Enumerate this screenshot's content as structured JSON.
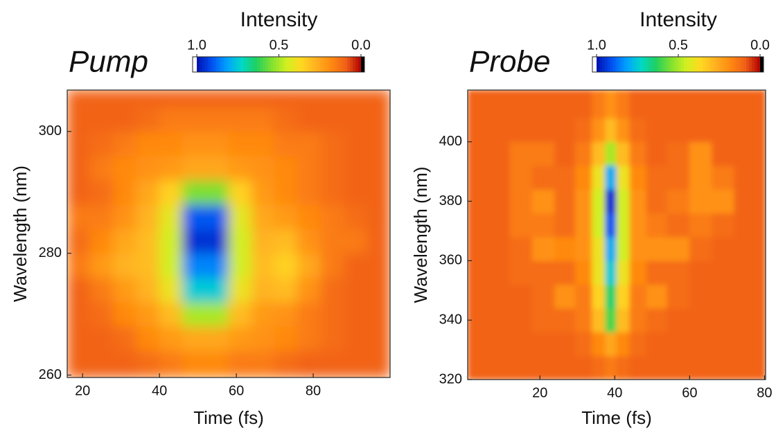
{
  "chart_data": [
    {
      "type": "heatmap",
      "title": "Pump",
      "x_label": "Time (fs)",
      "y_label": "Wavelength (nm)",
      "colorbar_label": "Intensity",
      "x": [
        19,
        25,
        31,
        37,
        43,
        49,
        55,
        61,
        67,
        73,
        79,
        85,
        91,
        97
      ],
      "y": [
        262,
        266,
        270,
        274,
        278,
        282,
        286,
        290,
        294,
        298,
        302,
        306
      ],
      "z": [
        [
          0.1,
          0.1,
          0.1,
          0.12,
          0.15,
          0.18,
          0.18,
          0.15,
          0.15,
          0.12,
          0.1,
          0.1,
          0.1,
          0.1
        ],
        [
          0.1,
          0.1,
          0.12,
          0.18,
          0.22,
          0.25,
          0.25,
          0.22,
          0.2,
          0.18,
          0.15,
          0.12,
          0.1,
          0.1
        ],
        [
          0.1,
          0.12,
          0.18,
          0.22,
          0.3,
          0.5,
          0.5,
          0.3,
          0.22,
          0.2,
          0.15,
          0.12,
          0.1,
          0.1
        ],
        [
          0.1,
          0.15,
          0.22,
          0.28,
          0.4,
          0.75,
          0.75,
          0.4,
          0.28,
          0.3,
          0.2,
          0.12,
          0.1,
          0.1
        ],
        [
          0.15,
          0.22,
          0.28,
          0.3,
          0.45,
          0.85,
          0.85,
          0.45,
          0.3,
          0.35,
          0.25,
          0.15,
          0.1,
          0.1
        ],
        [
          0.12,
          0.18,
          0.25,
          0.3,
          0.45,
          0.95,
          0.95,
          0.45,
          0.28,
          0.3,
          0.2,
          0.15,
          0.15,
          0.1
        ],
        [
          0.15,
          0.15,
          0.2,
          0.28,
          0.42,
          0.9,
          0.9,
          0.42,
          0.25,
          0.22,
          0.18,
          0.15,
          0.12,
          0.1
        ],
        [
          0.1,
          0.12,
          0.18,
          0.25,
          0.35,
          0.55,
          0.55,
          0.35,
          0.22,
          0.18,
          0.15,
          0.12,
          0.1,
          0.1
        ],
        [
          0.1,
          0.15,
          0.18,
          0.2,
          0.22,
          0.25,
          0.25,
          0.22,
          0.2,
          0.18,
          0.15,
          0.12,
          0.1,
          0.1
        ],
        [
          0.1,
          0.12,
          0.15,
          0.18,
          0.18,
          0.2,
          0.2,
          0.18,
          0.18,
          0.15,
          0.15,
          0.12,
          0.1,
          0.1
        ],
        [
          0.1,
          0.1,
          0.1,
          0.12,
          0.15,
          0.15,
          0.15,
          0.15,
          0.15,
          0.12,
          0.1,
          0.1,
          0.1,
          0.1
        ],
        [
          0.1,
          0.1,
          0.1,
          0.1,
          0.1,
          0.1,
          0.1,
          0.1,
          0.1,
          0.1,
          0.1,
          0.1,
          0.1,
          0.1
        ]
      ],
      "xlim": [
        16,
        100
      ],
      "ylim": [
        259.6,
        306.8
      ],
      "xticks": [
        20,
        40,
        60,
        80
      ],
      "yticks": [
        260,
        280,
        300
      ],
      "zlim": [
        0,
        1
      ],
      "zticks": [
        {
          "value": 1,
          "label": "1.0"
        },
        {
          "value": 0.5,
          "label": "0.5"
        },
        {
          "value": 0,
          "label": "0.0"
        }
      ],
      "colormap": [
        "#b00000",
        "#f06018",
        "#ff8a10",
        "#ffb020",
        "#ffd820",
        "#d0f020",
        "#80e030",
        "#20d060",
        "#00d8c8",
        "#00a0ff",
        "#0050f0",
        "#0010b0"
      ]
    },
    {
      "type": "heatmap",
      "title": "Probe",
      "x_label": "Time (fs)",
      "y_label": "Wavelength (nm)",
      "colorbar_label": "Intensity",
      "x": [
        3,
        9,
        15,
        21,
        27,
        32,
        36,
        39,
        42,
        46,
        51,
        57,
        63,
        69,
        75,
        79
      ],
      "y": [
        324,
        332,
        340,
        348,
        356,
        364,
        372,
        380,
        388,
        396,
        404,
        412
      ],
      "z": [
        [
          0.1,
          0.1,
          0.1,
          0.1,
          0.1,
          0.1,
          0.12,
          0.15,
          0.12,
          0.1,
          0.1,
          0.1,
          0.1,
          0.1,
          0.1,
          0.1
        ],
        [
          0.1,
          0.1,
          0.1,
          0.1,
          0.1,
          0.12,
          0.18,
          0.25,
          0.18,
          0.12,
          0.1,
          0.1,
          0.1,
          0.1,
          0.1,
          0.1
        ],
        [
          0.1,
          0.1,
          0.1,
          0.12,
          0.12,
          0.15,
          0.3,
          0.6,
          0.3,
          0.15,
          0.12,
          0.1,
          0.1,
          0.1,
          0.1,
          0.1
        ],
        [
          0.1,
          0.1,
          0.1,
          0.12,
          0.2,
          0.15,
          0.35,
          0.65,
          0.35,
          0.15,
          0.2,
          0.12,
          0.1,
          0.1,
          0.1,
          0.1
        ],
        [
          0.1,
          0.1,
          0.12,
          0.12,
          0.12,
          0.18,
          0.4,
          0.75,
          0.4,
          0.18,
          0.12,
          0.12,
          0.1,
          0.1,
          0.1,
          0.1
        ],
        [
          0.1,
          0.1,
          0.12,
          0.2,
          0.18,
          0.2,
          0.4,
          0.8,
          0.45,
          0.2,
          0.2,
          0.2,
          0.12,
          0.1,
          0.1,
          0.1
        ],
        [
          0.1,
          0.1,
          0.15,
          0.15,
          0.12,
          0.2,
          0.45,
          0.9,
          0.45,
          0.2,
          0.15,
          0.12,
          0.15,
          0.12,
          0.1,
          0.1
        ],
        [
          0.1,
          0.1,
          0.15,
          0.2,
          0.12,
          0.2,
          0.45,
          0.95,
          0.45,
          0.2,
          0.12,
          0.15,
          0.2,
          0.2,
          0.1,
          0.1
        ],
        [
          0.1,
          0.1,
          0.15,
          0.12,
          0.12,
          0.18,
          0.4,
          0.8,
          0.4,
          0.18,
          0.12,
          0.12,
          0.2,
          0.15,
          0.1,
          0.1
        ],
        [
          0.1,
          0.1,
          0.15,
          0.15,
          0.1,
          0.15,
          0.3,
          0.5,
          0.3,
          0.15,
          0.1,
          0.12,
          0.2,
          0.1,
          0.1,
          0.1
        ],
        [
          0.1,
          0.1,
          0.1,
          0.1,
          0.1,
          0.12,
          0.2,
          0.3,
          0.2,
          0.12,
          0.1,
          0.1,
          0.1,
          0.1,
          0.1,
          0.1
        ],
        [
          0.1,
          0.1,
          0.1,
          0.1,
          0.1,
          0.1,
          0.15,
          0.2,
          0.15,
          0.1,
          0.1,
          0.1,
          0.1,
          0.1,
          0.1,
          0.1
        ]
      ],
      "xlim": [
        0.7,
        80.3
      ],
      "ylim": [
        320,
        417.4
      ],
      "xticks": [
        20,
        40,
        60,
        80
      ],
      "yticks": [
        320,
        340,
        360,
        380,
        400
      ],
      "zlim": [
        0,
        1
      ],
      "zticks": [
        {
          "value": 1,
          "label": "1.0"
        },
        {
          "value": 0.5,
          "label": "0.5"
        },
        {
          "value": 0,
          "label": "0.0"
        }
      ],
      "colormap": [
        "#b00000",
        "#f06018",
        "#ff8a10",
        "#ffb020",
        "#ffd820",
        "#d0f020",
        "#80e030",
        "#20d060",
        "#00d8c8",
        "#00a0ff",
        "#0050f0",
        "#0010b0"
      ]
    }
  ]
}
